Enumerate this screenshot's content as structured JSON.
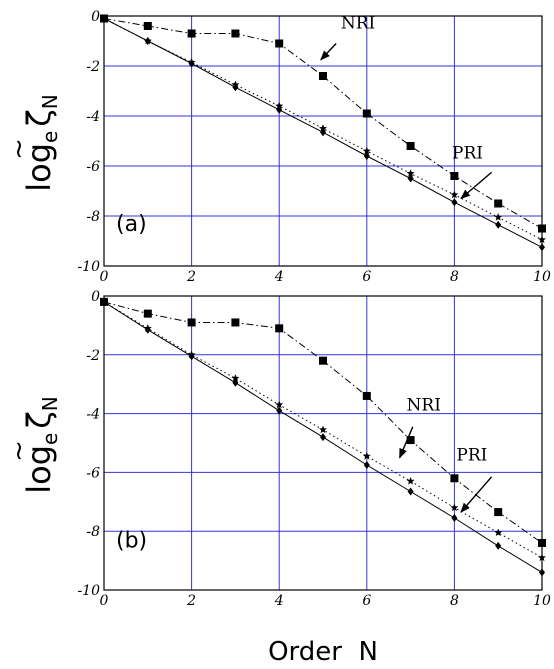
{
  "chart_data": [
    {
      "type": "line",
      "panel_label": "(a)",
      "ylabel": "log",
      "ylabel_sub": "e",
      "ylabel_symbol": "ζ",
      "ylabel_symbol_sub": "N",
      "xlim": [
        0,
        10
      ],
      "ylim": [
        -10,
        0
      ],
      "xticks": [
        "0",
        "2",
        "4",
        "6",
        "8",
        "10"
      ],
      "yticks": [
        "0",
        "-2",
        "-4",
        "-6",
        "-8",
        "-10"
      ],
      "grid": true,
      "series": [
        {
          "marker": "square",
          "line": "dashdot",
          "x": [
            0,
            1,
            2,
            3,
            4,
            5,
            6,
            7,
            8,
            9,
            10
          ],
          "y": [
            -0.1,
            -0.4,
            -0.7,
            -0.7,
            -1.1,
            -2.4,
            -3.9,
            -5.2,
            -6.4,
            -7.5,
            -8.5
          ]
        },
        {
          "marker": "star",
          "line": "dotted",
          "x": [
            0,
            1,
            2,
            3,
            4,
            5,
            6,
            7,
            8,
            9,
            10
          ],
          "y": [
            -0.1,
            -1.0,
            -1.85,
            -2.75,
            -3.6,
            -4.5,
            -5.4,
            -6.3,
            -7.15,
            -8.05,
            -8.95
          ]
        },
        {
          "marker": "diamond",
          "line": "solid",
          "x": [
            0,
            1,
            2,
            3,
            4,
            5,
            6,
            7,
            8,
            9,
            10
          ],
          "y": [
            -0.1,
            -1.0,
            -1.9,
            -2.85,
            -3.75,
            -4.65,
            -5.6,
            -6.5,
            -7.45,
            -8.35,
            -9.25
          ]
        }
      ],
      "annotations": [
        {
          "text": "NRI",
          "text_xy": [
            5.8,
            -0.5
          ],
          "arrow_from": [
            5.3,
            -1.1
          ],
          "arrow_to": [
            4.95,
            -1.75
          ]
        },
        {
          "text": "PRI",
          "text_xy": [
            8.3,
            -5.7
          ],
          "arrow_from": [
            8.85,
            -6.25
          ],
          "arrow_to": [
            8.15,
            -7.3
          ]
        }
      ]
    },
    {
      "type": "line",
      "panel_label": "(b)",
      "ylabel": "log",
      "ylabel_sub": "e",
      "ylabel_symbol": "ζ",
      "ylabel_symbol_sub": "N",
      "xlabel": "Order  N",
      "xlim": [
        0,
        10
      ],
      "ylim": [
        -10,
        0
      ],
      "xticks": [
        "0",
        "2",
        "4",
        "6",
        "8",
        "10"
      ],
      "yticks": [
        "0",
        "-2",
        "-4",
        "-6",
        "-8",
        "-10"
      ],
      "grid": true,
      "series": [
        {
          "marker": "square",
          "line": "dashdot",
          "x": [
            0,
            1,
            2,
            3,
            4,
            5,
            6,
            7,
            8,
            9,
            10
          ],
          "y": [
            -0.2,
            -0.6,
            -0.9,
            -0.9,
            -1.1,
            -2.2,
            -3.4,
            -4.9,
            -6.2,
            -7.35,
            -8.4
          ]
        },
        {
          "marker": "star",
          "line": "dotted",
          "x": [
            0,
            1,
            2,
            3,
            4,
            5,
            6,
            7,
            8,
            9,
            10
          ],
          "y": [
            -0.2,
            -1.1,
            -2.0,
            -2.8,
            -3.7,
            -4.55,
            -5.45,
            -6.3,
            -7.2,
            -8.05,
            -8.9
          ]
        },
        {
          "marker": "diamond",
          "line": "solid",
          "x": [
            0,
            1,
            2,
            3,
            4,
            5,
            6,
            7,
            8,
            9,
            10
          ],
          "y": [
            -0.2,
            -1.15,
            -2.05,
            -2.95,
            -3.9,
            -4.8,
            -5.75,
            -6.65,
            -7.55,
            -8.5,
            -9.4
          ]
        }
      ],
      "annotations": [
        {
          "text": "NRI",
          "text_xy": [
            7.3,
            -3.9
          ],
          "arrow_from": [
            7.05,
            -4.45
          ],
          "arrow_to": [
            6.75,
            -5.5
          ]
        },
        {
          "text": "PRI",
          "text_xy": [
            8.4,
            -5.6
          ],
          "arrow_from": [
            8.85,
            -6.15
          ],
          "arrow_to": [
            8.15,
            -7.35
          ]
        }
      ]
    }
  ],
  "colors": {
    "grid": "#3333dd",
    "axes": "#000000",
    "marks": "#000000"
  }
}
